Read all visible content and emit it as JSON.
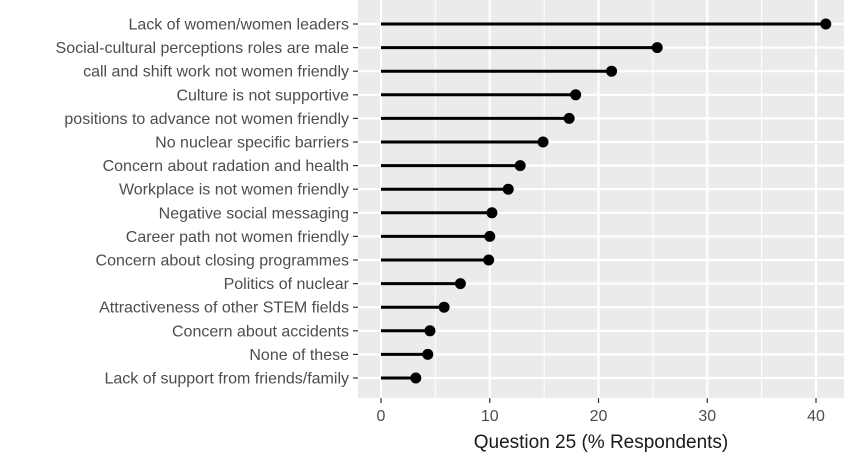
{
  "chart_data": {
    "type": "scatter",
    "subtype": "lollipop",
    "title": "",
    "xlabel": "Question 25 (% Respondents)",
    "ylabel": "",
    "xlim": [
      -2,
      43
    ],
    "xticks": [
      0,
      10,
      20,
      30,
      40
    ],
    "grid": true,
    "legend": "none",
    "colors": {
      "panel": "#ebebeb",
      "grid_major": "#ffffff",
      "mark": "#000000",
      "text": "#4d4d4d"
    },
    "categories": [
      "Lack of women/women leaders",
      "Social-cultural perceptions roles are male",
      "call and shift work not women friendly",
      "Culture is not supportive",
      "positions to advance not women friendly",
      "No nuclear specific barriers",
      "Concern about radation and health",
      "Workplace is not women friendly",
      "Negative social  messaging",
      "Career path not women friendly",
      "Concern about closing programmes",
      "Politics of nuclear",
      "Attractiveness  of other STEM  fields",
      "Concern about accidents",
      "None of these",
      "Lack of support from friends/family"
    ],
    "values": [
      40.9,
      25.4,
      21.2,
      17.9,
      17.3,
      14.9,
      12.8,
      11.7,
      10.2,
      10.0,
      9.9,
      7.3,
      5.8,
      4.5,
      4.3,
      3.2
    ]
  }
}
